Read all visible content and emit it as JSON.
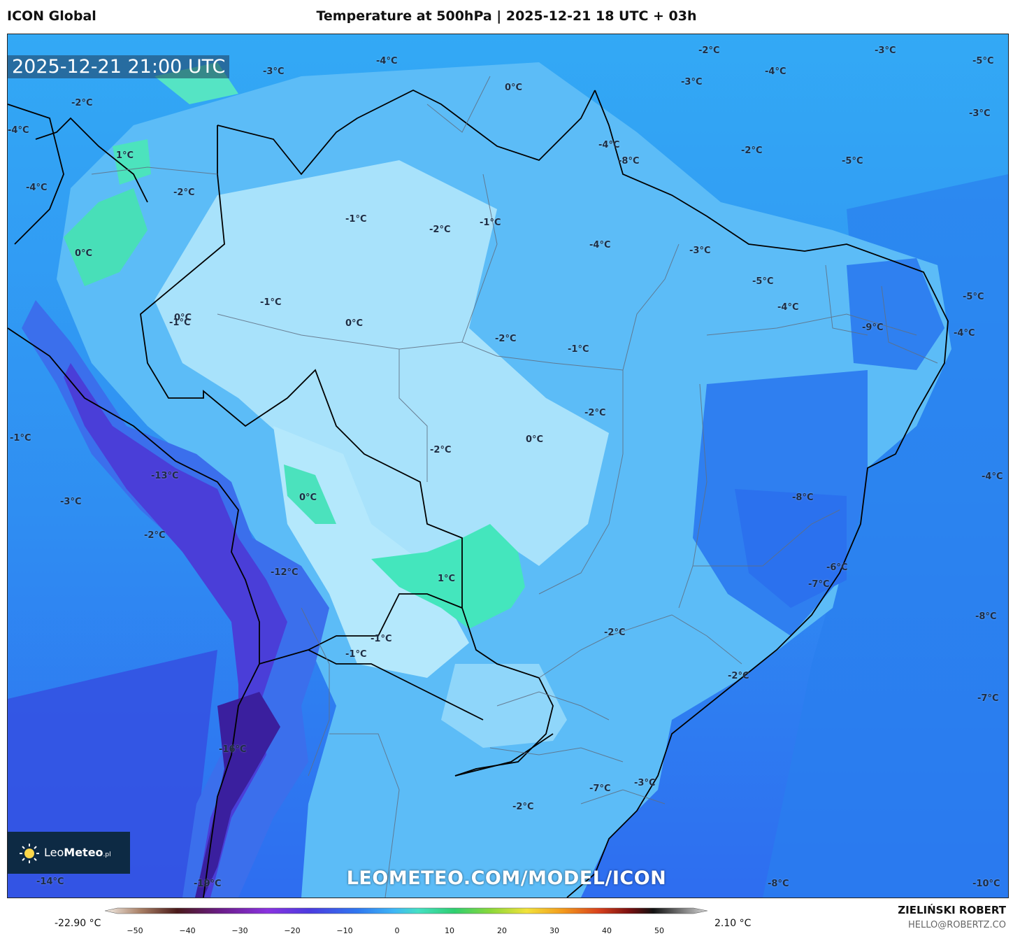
{
  "header": {
    "model": "ICON Global",
    "title": "Temperature at 500hPa | 2025-12-21 18 UTC + 03h"
  },
  "map": {
    "valid_time": "2025-12-21 21:00 UTC",
    "watermark": "LEOMETEO.COM/MODEL/ICON",
    "logo": {
      "prefix": "Leo",
      "bold": "Meteo",
      "suffix": ".pl"
    },
    "region": "South America / Brazil",
    "colors": {
      "very_cold": "#4b2fd8",
      "cold": "#2e63ee",
      "cool": "#2f86f4",
      "mild": "#35a6f5",
      "light": "#64c3f8",
      "lighter": "#a6e2fb",
      "warm_teal": "#42e8c0",
      "border": "#000000",
      "contour": "#5a6f86"
    },
    "temperature_labels": [
      {
        "text": "-4°C"
      },
      {
        "text": "-3°C"
      },
      {
        "text": "-2°C"
      },
      {
        "text": "-3°C"
      },
      {
        "text": "-5°C"
      },
      {
        "text": "-4°C"
      },
      {
        "text": "-2°C"
      },
      {
        "text": "-3°C"
      },
      {
        "text": "-4°C"
      },
      {
        "text": "-3°C"
      },
      {
        "text": "0°C"
      },
      {
        "text": "-4°C"
      },
      {
        "text": "-8°C"
      },
      {
        "text": "-2°C"
      },
      {
        "text": "-5°C"
      },
      {
        "text": "1°C"
      },
      {
        "text": "-4°C"
      },
      {
        "text": "-2°C"
      },
      {
        "text": "-1°C"
      },
      {
        "text": "-2°C"
      },
      {
        "text": "-1°C"
      },
      {
        "text": "0°C"
      },
      {
        "text": "-4°C"
      },
      {
        "text": "-3°C"
      },
      {
        "text": "-1°C"
      },
      {
        "text": "-5°C"
      },
      {
        "text": "-5°C"
      },
      {
        "text": "0°C"
      },
      {
        "text": "-1°C"
      },
      {
        "text": "0°C"
      },
      {
        "text": "-4°C"
      },
      {
        "text": "-2°C"
      },
      {
        "text": "-1°C"
      },
      {
        "text": "-9°C"
      },
      {
        "text": "-4°C"
      },
      {
        "text": "-2°C"
      },
      {
        "text": "-1°C"
      },
      {
        "text": "0°C"
      },
      {
        "text": "-2°C"
      },
      {
        "text": "-13°C"
      },
      {
        "text": "-4°C"
      },
      {
        "text": "0°C"
      },
      {
        "text": "-3°C"
      },
      {
        "text": "-8°C"
      },
      {
        "text": "-2°C"
      },
      {
        "text": "-12°C"
      },
      {
        "text": "-6°C"
      },
      {
        "text": "1°C"
      },
      {
        "text": "-7°C"
      },
      {
        "text": "-8°C"
      },
      {
        "text": "-2°C"
      },
      {
        "text": "-1°C"
      },
      {
        "text": "-1°C"
      },
      {
        "text": "-2°C"
      },
      {
        "text": "-7°C"
      },
      {
        "text": "-16°C"
      },
      {
        "text": "-3°C"
      },
      {
        "text": "-7°C"
      },
      {
        "text": "-2°C"
      },
      {
        "text": "-14°C"
      },
      {
        "text": "-19°C"
      },
      {
        "text": "-8°C"
      },
      {
        "text": "-10°C"
      }
    ]
  },
  "legend": {
    "min_label": "-22.90 °C",
    "max_label": "2.10 °C",
    "ticks": [
      "−50",
      "−40",
      "−30",
      "−20",
      "−10",
      "0",
      "10",
      "20",
      "30",
      "40",
      "50"
    ]
  },
  "footer": {
    "author": "ZIELIŃSKI ROBERT",
    "contact": "HELLO@ROBERTZ.CO"
  }
}
